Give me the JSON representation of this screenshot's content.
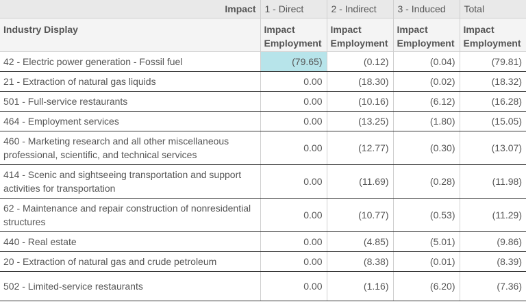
{
  "header_top": {
    "impact": "Impact",
    "col1": "1 - Direct",
    "col2": "2 - Indirect",
    "col3": "3 - Induced",
    "col4": "Total"
  },
  "header_sub": {
    "industry": "Industry Display",
    "metric_line1": "Impact",
    "metric_line2": "Employment"
  },
  "rows": [
    {
      "name": "42 - Electric power generation - Fossil fuel",
      "direct": "(79.65)",
      "indirect": "(0.12)",
      "induced": "(0.04)",
      "total": "(79.81)"
    },
    {
      "name": "21 - Extraction of natural gas liquids",
      "direct": "0.00",
      "indirect": "(18.30)",
      "induced": "(0.02)",
      "total": "(18.32)"
    },
    {
      "name": "501 - Full-service restaurants",
      "direct": "0.00",
      "indirect": "(10.16)",
      "induced": "(6.12)",
      "total": "(16.28)"
    },
    {
      "name": "464 - Employment services",
      "direct": "0.00",
      "indirect": "(13.25)",
      "induced": "(1.80)",
      "total": "(15.05)"
    },
    {
      "name": "460 - Marketing research and all other miscellaneous professional, scientific, and technical services",
      "direct": "0.00",
      "indirect": "(12.77)",
      "induced": "(0.30)",
      "total": "(13.07)"
    },
    {
      "name": "414 - Scenic and sightseeing transportation and support activities for transportation",
      "direct": "0.00",
      "indirect": "(11.69)",
      "induced": "(0.28)",
      "total": "(11.98)"
    },
    {
      "name": "62 - Maintenance and repair construction of nonresidential structures",
      "direct": "0.00",
      "indirect": "(10.77)",
      "induced": "(0.53)",
      "total": "(11.29)"
    },
    {
      "name": "440 - Real estate",
      "direct": "0.00",
      "indirect": "(4.85)",
      "induced": "(5.01)",
      "total": "(9.86)"
    },
    {
      "name": "20 - Extraction of natural gas and crude petroleum",
      "direct": "0.00",
      "indirect": "(8.38)",
      "induced": "(0.01)",
      "total": "(8.39)"
    },
    {
      "name": "502 - Limited-service restaurants",
      "direct": "0.00",
      "indirect": "(1.16)",
      "induced": "(6.20)",
      "total": "(7.36)"
    }
  ],
  "colors": {
    "highlight": "#b7e4ea",
    "header_bg": "#e9e9e9"
  }
}
